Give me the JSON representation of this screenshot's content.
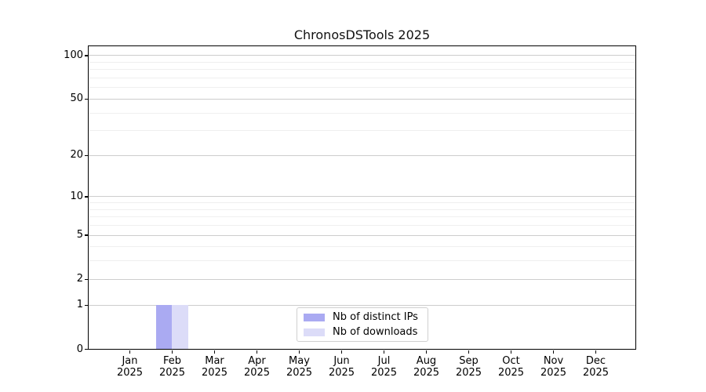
{
  "figure": {
    "title": "ChronosDSTools 2025",
    "background": "#ffffff"
  },
  "chart_data": {
    "type": "bar",
    "title": "ChronosDSTools 2025",
    "categories": [
      "Jan 2025",
      "Feb 2025",
      "Mar 2025",
      "Apr 2025",
      "May 2025",
      "Jun 2025",
      "Jul 2025",
      "Aug 2025",
      "Sep 2025",
      "Oct 2025",
      "Nov 2025",
      "Dec 2025"
    ],
    "series": [
      {
        "name": "Nb of distinct IPs",
        "color": "#aaaaf2",
        "values": [
          0,
          1,
          0,
          0,
          0,
          0,
          0,
          0,
          0,
          0,
          0,
          0
        ]
      },
      {
        "name": "Nb of downloads",
        "color": "#dcdcf8",
        "values": [
          0,
          1,
          0,
          0,
          0,
          0,
          0,
          0,
          0,
          0,
          0,
          0
        ]
      }
    ],
    "xlabel": "",
    "ylabel": "",
    "yscale": "log1p",
    "y_ticks": [
      0,
      1,
      2,
      5,
      10,
      20,
      50,
      100
    ],
    "y_tick_labels": [
      "0",
      "1",
      "2",
      "5",
      "10",
      "20",
      "50",
      "100"
    ],
    "y_minor_ticks": [
      3,
      4,
      6,
      7,
      8,
      9,
      30,
      40,
      60,
      70,
      80,
      90
    ],
    "ylim": [
      0,
      115
    ],
    "grid": "horizontal",
    "legend_position": "inside-bottom-center",
    "colors": {
      "spine": "#000000",
      "grid_major": "#cdcdcd",
      "grid_minor": "#efefef",
      "legend_border": "#d0d0d0",
      "text": "#000000"
    }
  }
}
